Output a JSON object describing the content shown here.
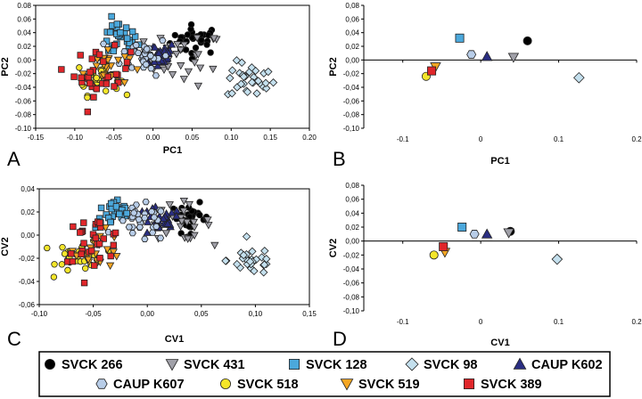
{
  "legend": [
    {
      "label": "SVCK 266",
      "marker": "circle",
      "color": "#000000"
    },
    {
      "label": "SVCK 431",
      "marker": "triangle-down",
      "color": "#a0a0a8"
    },
    {
      "label": "SVCK 128",
      "marker": "square",
      "color": "#4ba8dc"
    },
    {
      "label": "SVCK 98",
      "marker": "diamond",
      "color": "#c4e0ee"
    },
    {
      "label": "CAUP K602",
      "marker": "triangle-up",
      "color": "#2a2e82"
    },
    {
      "label": "CAUP K607",
      "marker": "hexagon",
      "color": "#b8cde8"
    },
    {
      "label": "SVCK 518",
      "marker": "circle",
      "color": "#f5e62a"
    },
    {
      "label": "SVCK 519",
      "marker": "triangle-down",
      "color": "#f5a623"
    },
    {
      "label": "SVCK 389",
      "marker": "square",
      "color": "#e0262a"
    }
  ],
  "chart_data": [
    {
      "panel": "A",
      "type": "scatter",
      "xlabel": "PC1",
      "ylabel": "PC2",
      "xlim": [
        -0.15,
        0.2
      ],
      "ylim": [
        -0.1,
        0.08
      ],
      "xticks": [
        "-0.15",
        "-0.10",
        "-0.05",
        "0.00",
        "0.05",
        "0.10",
        "0.15",
        "0.20"
      ],
      "yticks": [
        "-0.10",
        "-0.08",
        "-0.06",
        "-0.04",
        "-0.02",
        "0.00",
        "0.02",
        "0.04",
        "0.06",
        "0.08"
      ],
      "clusters": [
        {
          "series": "SVCK 266",
          "cx": 0.055,
          "cy": 0.03,
          "sx": 0.018,
          "sy": 0.012,
          "n": 30
        },
        {
          "series": "SVCK 431",
          "cx": 0.04,
          "cy": 0.002,
          "sx": 0.028,
          "sy": 0.022,
          "n": 30
        },
        {
          "series": "SVCK 128",
          "cx": -0.045,
          "cy": 0.03,
          "sx": 0.014,
          "sy": 0.015,
          "n": 30
        },
        {
          "series": "SVCK 98",
          "cx": 0.125,
          "cy": -0.03,
          "sx": 0.017,
          "sy": 0.015,
          "n": 30
        },
        {
          "series": "CAUP K602",
          "cx": 0.005,
          "cy": 0.008,
          "sx": 0.014,
          "sy": 0.011,
          "n": 30
        },
        {
          "series": "CAUP K607",
          "cx": -0.01,
          "cy": 0.007,
          "sx": 0.017,
          "sy": 0.016,
          "n": 30
        },
        {
          "series": "SVCK 518",
          "cx": -0.07,
          "cy": -0.026,
          "sx": 0.015,
          "sy": 0.014,
          "n": 30
        },
        {
          "series": "SVCK 519",
          "cx": -0.06,
          "cy": -0.01,
          "sx": 0.016,
          "sy": 0.016,
          "n": 25
        },
        {
          "series": "SVCK 389",
          "cx": -0.065,
          "cy": -0.018,
          "sx": 0.02,
          "sy": 0.019,
          "n": 30
        }
      ]
    },
    {
      "panel": "B",
      "type": "scatter",
      "xlabel": "PC1",
      "ylabel": "PC2",
      "xlim": [
        -0.15,
        0.2
      ],
      "ylim": [
        -0.1,
        0.08
      ],
      "xticks": [
        "-0.1",
        "0",
        "0.1",
        "0.2"
      ],
      "yticks": [
        "-0,10",
        "-0,08",
        "-0,06",
        "-0,04",
        "-0,02",
        "0,00",
        "0,02",
        "0,04",
        "0,06",
        "0,08"
      ],
      "points": [
        {
          "series": "SVCK 266",
          "x": 0.06,
          "y": 0.028
        },
        {
          "series": "SVCK 431",
          "x": 0.042,
          "y": 0.004
        },
        {
          "series": "SVCK 128",
          "x": -0.027,
          "y": 0.032
        },
        {
          "series": "SVCK 98",
          "x": 0.126,
          "y": -0.026
        },
        {
          "series": "CAUP K602",
          "x": 0.008,
          "y": 0.005
        },
        {
          "series": "CAUP K607",
          "x": -0.012,
          "y": 0.008
        },
        {
          "series": "SVCK 518",
          "x": -0.07,
          "y": -0.024
        },
        {
          "series": "SVCK 519",
          "x": -0.058,
          "y": -0.01
        },
        {
          "series": "SVCK 389",
          "x": -0.063,
          "y": -0.016
        }
      ]
    },
    {
      "panel": "C",
      "type": "scatter",
      "xlabel": "CV1",
      "ylabel": "CV2",
      "xlim": [
        -0.1,
        0.15
      ],
      "ylim": [
        -0.07,
        0.045
      ],
      "xticks": [
        "-0,10",
        "-0,05",
        "0,00",
        "0,05",
        "0,10",
        "0,15"
      ],
      "yticks": [
        "-0,06",
        "-0,04",
        "-0,02",
        "0,00",
        "0,02",
        "0,04"
      ],
      "clusters": [
        {
          "series": "SVCK 266",
          "cx": 0.04,
          "cy": 0.016,
          "sx": 0.01,
          "sy": 0.008,
          "n": 30
        },
        {
          "series": "SVCK 431",
          "cx": 0.03,
          "cy": 0.012,
          "sx": 0.016,
          "sy": 0.01,
          "n": 25
        },
        {
          "series": "SVCK 128",
          "cx": -0.03,
          "cy": 0.02,
          "sx": 0.01,
          "sy": 0.008,
          "n": 30
        },
        {
          "series": "SVCK 98",
          "cx": 0.097,
          "cy": -0.026,
          "sx": 0.013,
          "sy": 0.008,
          "n": 30
        },
        {
          "series": "CAUP K602",
          "cx": 0.01,
          "cy": 0.012,
          "sx": 0.012,
          "sy": 0.008,
          "n": 30
        },
        {
          "series": "CAUP K607",
          "cx": -0.005,
          "cy": 0.01,
          "sx": 0.013,
          "sy": 0.01,
          "n": 30
        },
        {
          "series": "SVCK 518",
          "cx": -0.062,
          "cy": -0.022,
          "sx": 0.012,
          "sy": 0.009,
          "n": 30
        },
        {
          "series": "SVCK 519",
          "cx": -0.045,
          "cy": -0.015,
          "sx": 0.012,
          "sy": 0.01,
          "n": 25
        },
        {
          "series": "SVCK 389",
          "cx": -0.05,
          "cy": -0.005,
          "sx": 0.016,
          "sy": 0.012,
          "n": 30
        }
      ]
    },
    {
      "panel": "D",
      "type": "scatter",
      "xlabel": "CV1",
      "ylabel": "CV2",
      "xlim": [
        -0.15,
        0.2
      ],
      "ylim": [
        -0.1,
        0.08
      ],
      "xticks": [
        "-0.1",
        "0",
        "0.1",
        "0.2"
      ],
      "yticks": [
        "-0,10",
        "-0,08",
        "-0,06",
        "-0,04",
        "-0,02",
        "0,00",
        "0,02",
        "0,04",
        "0,06",
        "0,08"
      ],
      "points": [
        {
          "series": "SVCK 266",
          "x": 0.038,
          "y": 0.014
        },
        {
          "series": "SVCK 431",
          "x": 0.036,
          "y": 0.012
        },
        {
          "series": "SVCK 128",
          "x": -0.024,
          "y": 0.02
        },
        {
          "series": "SVCK 98",
          "x": 0.098,
          "y": -0.026
        },
        {
          "series": "CAUP K602",
          "x": 0.008,
          "y": 0.01
        },
        {
          "series": "CAUP K607",
          "x": -0.008,
          "y": 0.01
        },
        {
          "series": "SVCK 518",
          "x": -0.06,
          "y": -0.02
        },
        {
          "series": "SVCK 519",
          "x": -0.046,
          "y": -0.016
        },
        {
          "series": "SVCK 389",
          "x": -0.048,
          "y": -0.008
        }
      ]
    }
  ]
}
